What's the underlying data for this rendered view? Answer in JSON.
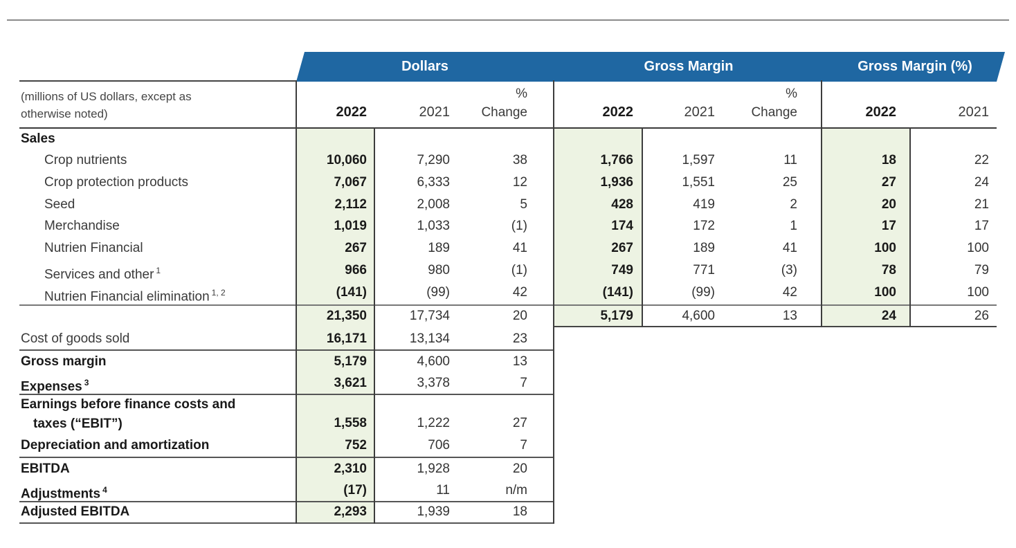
{
  "colors": {
    "accent_blue": "#1f67a2",
    "highlight_green": "#edf3e3",
    "rule_gray": "#8a8a8a",
    "line_dark": "#444444"
  },
  "caption": {
    "line1": "(millions of US dollars, except as",
    "line2": "otherwise noted)"
  },
  "sections": [
    {
      "name": "dollars",
      "label": "Dollars"
    },
    {
      "name": "gross-margin",
      "label": "Gross Margin"
    },
    {
      "name": "gross-margin-pct",
      "label": "Gross Margin (%)"
    }
  ],
  "column_headers": {
    "y2022": "2022",
    "y2021": "2021",
    "pct_line1": "%",
    "pct_line2": "Change"
  },
  "rows": [
    {
      "label": "Sales",
      "bold": true
    },
    {
      "label": "Crop nutrients",
      "indent": 1,
      "d22": "10,060",
      "d21": "7,290",
      "dch": "38",
      "g22": "1,766",
      "g21": "1,597",
      "gch": "11",
      "p22": "18",
      "p21": "22"
    },
    {
      "label": "Crop protection products",
      "indent": 1,
      "d22": "7,067",
      "d21": "6,333",
      "dch": "12",
      "g22": "1,936",
      "g21": "1,551",
      "gch": "25",
      "p22": "27",
      "p21": "24"
    },
    {
      "label": "Seed",
      "indent": 1,
      "d22": "2,112",
      "d21": "2,008",
      "dch": "5",
      "g22": "428",
      "g21": "419",
      "gch": "2",
      "p22": "20",
      "p21": "21"
    },
    {
      "label": "Merchandise",
      "indent": 1,
      "d22": "1,019",
      "d21": "1,033",
      "dch": "(1)",
      "g22": "174",
      "g21": "172",
      "gch": "1",
      "p22": "17",
      "p21": "17"
    },
    {
      "label": "Nutrien Financial",
      "indent": 1,
      "d22": "267",
      "d21": "189",
      "dch": "41",
      "g22": "267",
      "g21": "189",
      "gch": "41",
      "p22": "100",
      "p21": "100"
    },
    {
      "label": "Services and other",
      "sup": "1",
      "indent": 1,
      "d22": "966",
      "d21": "980",
      "dch": "(1)",
      "g22": "749",
      "g21": "771",
      "gch": "(3)",
      "p22": "78",
      "p21": "79"
    },
    {
      "label": "Nutrien Financial elimination",
      "sup": "1, 2",
      "indent": 1,
      "d22": "(141)",
      "d21": "(99)",
      "dch": "42",
      "g22": "(141)",
      "g21": "(99)",
      "gch": "42",
      "p22": "100",
      "p21": "100"
    },
    {
      "label": "",
      "d22": "21,350",
      "d21": "17,734",
      "dch": "20",
      "g22": "5,179",
      "g21": "4,600",
      "gch": "13",
      "p22": "24",
      "p21": "26"
    },
    {
      "label": "Cost of goods sold",
      "d22": "16,171",
      "d21": "13,134",
      "dch": "23"
    },
    {
      "label": "Gross margin",
      "bold": true,
      "d22": "5,179",
      "d21": "4,600",
      "dch": "13"
    },
    {
      "label": "Expenses",
      "sup": "3",
      "bold": true,
      "d22": "3,621",
      "d21": "3,378",
      "dch": "7"
    },
    {
      "label": "Earnings before finance costs and",
      "label2": "taxes (“EBIT”)",
      "bold": true,
      "d22": "1,558",
      "d21": "1,222",
      "dch": "27"
    },
    {
      "label": "Depreciation and amortization",
      "bold": true,
      "d22": "752",
      "d21": "706",
      "dch": "7"
    },
    {
      "label": "EBITDA",
      "bold": true,
      "d22": "2,310",
      "d21": "1,928",
      "dch": "20"
    },
    {
      "label": "Adjustments",
      "sup": "4",
      "bold": true,
      "d22": "(17)",
      "d21": "11",
      "dch": "n/m"
    },
    {
      "label": "Adjusted EBITDA",
      "bold": true,
      "d22": "2,293",
      "d21": "1,939",
      "dch": "18"
    }
  ]
}
